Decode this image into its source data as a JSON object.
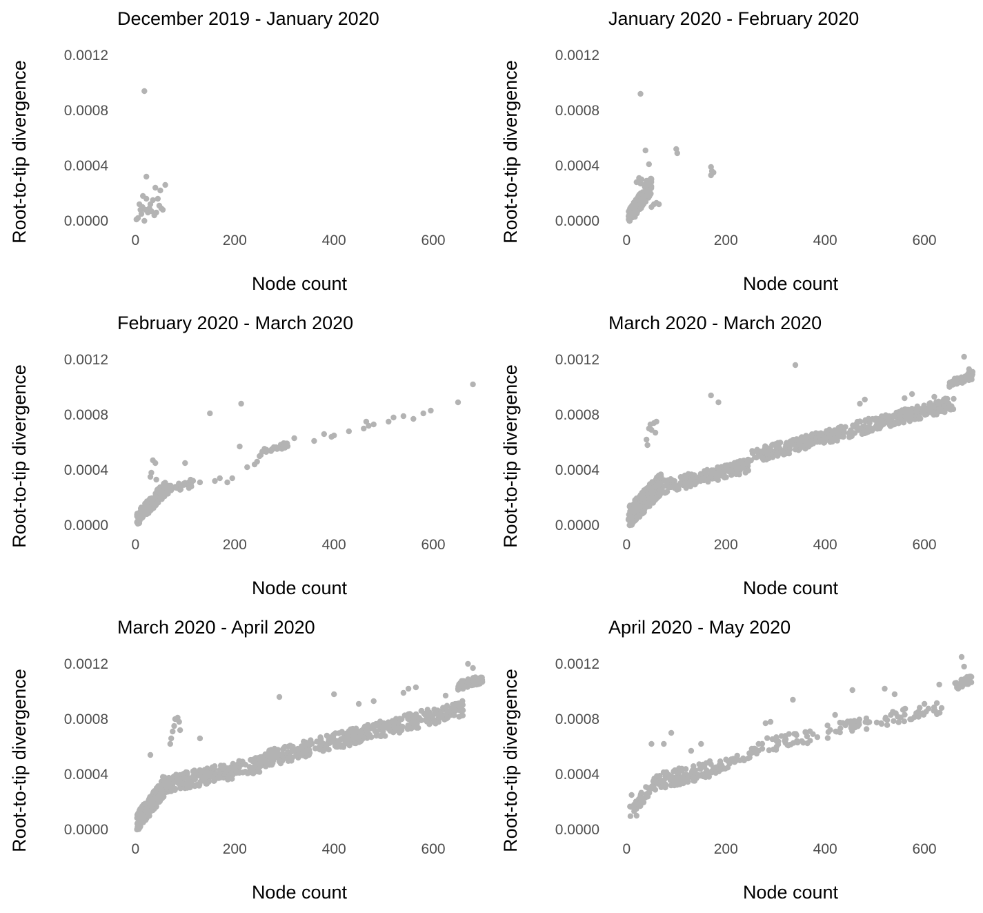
{
  "figure": {
    "point_color": "#b3b3b3",
    "text_color": "#000000",
    "tick_color": "#4d4d4d"
  },
  "chart_data": [
    {
      "type": "scatter",
      "title": "December 2019 - January 2020",
      "xlabel": "Node count",
      "ylabel": "Root-to-tip divergence",
      "xlim": [
        -20,
        700
      ],
      "ylim": [
        -5e-05,
        0.0013
      ],
      "xticks": [
        "0",
        "200",
        "400",
        "600"
      ],
      "yticks": [
        "0.0000",
        "0.0004",
        "0.0008",
        "0.0012"
      ],
      "grid": false,
      "clusters": [],
      "points": [
        [
          2,
          1e-05
        ],
        [
          5,
          2e-05
        ],
        [
          8,
          0.00012
        ],
        [
          10,
          8e-05
        ],
        [
          12,
          5e-05
        ],
        [
          14,
          0.0001
        ],
        [
          15,
          0.00018
        ],
        [
          18,
          0.0
        ],
        [
          18,
          0.00094
        ],
        [
          20,
          8e-05
        ],
        [
          22,
          0.00016
        ],
        [
          22,
          0.00032
        ],
        [
          25,
          6e-05
        ],
        [
          28,
          9e-05
        ],
        [
          30,
          0.00012
        ],
        [
          32,
          7e-05
        ],
        [
          35,
          0.00015
        ],
        [
          38,
          4e-05
        ],
        [
          40,
          0.00024
        ],
        [
          42,
          6e-05
        ],
        [
          45,
          0.00016
        ],
        [
          48,
          0.00011
        ],
        [
          50,
          0.00022
        ],
        [
          52,
          9e-05
        ],
        [
          55,
          8e-05
        ],
        [
          60,
          0.00026
        ]
      ]
    },
    {
      "type": "scatter",
      "title": "January 2020 - February 2020",
      "xlabel": "Node count",
      "ylabel": "Root-to-tip divergence",
      "xlim": [
        -20,
        700
      ],
      "ylim": [
        -5e-05,
        0.0013
      ],
      "xticks": [
        "0",
        "200",
        "400",
        "600"
      ],
      "yticks": [
        "0.0000",
        "0.0004",
        "0.0008",
        "0.0012"
      ],
      "grid": false,
      "clusters": [
        {
          "n": 220,
          "x0": 3,
          "x1": 50,
          "y0": 0.0,
          "y1": 0.00024,
          "sy": 6e-05
        }
      ],
      "points": [
        [
          20,
          0.00028
        ],
        [
          25,
          0.00031
        ],
        [
          28,
          0.00027
        ],
        [
          30,
          0.0003
        ],
        [
          35,
          0.00026
        ],
        [
          40,
          0.00029
        ],
        [
          45,
          0.00028
        ],
        [
          50,
          0.0001
        ],
        [
          55,
          0.00012
        ],
        [
          60,
          0.00013
        ],
        [
          65,
          0.00012
        ],
        [
          28,
          0.00092
        ],
        [
          38,
          0.00051
        ],
        [
          45,
          0.00041
        ],
        [
          100,
          0.00052
        ],
        [
          102,
          0.00049
        ],
        [
          170,
          0.00039
        ],
        [
          172,
          0.00036
        ],
        [
          170,
          0.00033
        ],
        [
          175,
          0.00035
        ]
      ]
    },
    {
      "type": "scatter",
      "title": "February 2020 - March 2020",
      "xlabel": "Node count",
      "ylabel": "Root-to-tip divergence",
      "xlim": [
        -20,
        700
      ],
      "ylim": [
        -5e-05,
        0.0013
      ],
      "xticks": [
        "0",
        "200",
        "400",
        "600"
      ],
      "yticks": [
        "0.0000",
        "0.0004",
        "0.0008",
        "0.0012"
      ],
      "grid": false,
      "clusters": [
        {
          "n": 160,
          "x0": 3,
          "x1": 60,
          "y0": 3e-05,
          "y1": 0.00025,
          "sy": 5e-05
        },
        {
          "n": 50,
          "x0": 40,
          "x1": 120,
          "y0": 0.00022,
          "y1": 0.0003,
          "sy": 3e-05
        },
        {
          "n": 30,
          "x0": 250,
          "x1": 310,
          "y0": 0.00052,
          "y1": 0.00058,
          "sy": 2e-05
        }
      ],
      "points": [
        [
          30,
          0.00035
        ],
        [
          32,
          0.00038
        ],
        [
          35,
          0.00047
        ],
        [
          40,
          0.00045
        ],
        [
          42,
          0.00033
        ],
        [
          100,
          0.00045
        ],
        [
          130,
          0.00031
        ],
        [
          150,
          0.00081
        ],
        [
          160,
          0.00032
        ],
        [
          170,
          0.00034
        ],
        [
          185,
          0.00031
        ],
        [
          195,
          0.00034
        ],
        [
          210,
          0.00057
        ],
        [
          213,
          0.00088
        ],
        [
          225,
          0.00042
        ],
        [
          240,
          0.00044
        ],
        [
          245,
          0.00046
        ],
        [
          250,
          0.0005
        ],
        [
          300,
          0.00059
        ],
        [
          320,
          0.00063
        ],
        [
          360,
          0.00061
        ],
        [
          380,
          0.00066
        ],
        [
          395,
          0.00064
        ],
        [
          400,
          0.00065
        ],
        [
          430,
          0.00068
        ],
        [
          460,
          0.0007
        ],
        [
          465,
          0.00075
        ],
        [
          470,
          0.00072
        ],
        [
          480,
          0.00073
        ],
        [
          510,
          0.00075
        ],
        [
          520,
          0.00078
        ],
        [
          540,
          0.00079
        ],
        [
          560,
          0.00077
        ],
        [
          580,
          0.00081
        ],
        [
          595,
          0.00083
        ],
        [
          650,
          0.00089
        ],
        [
          680,
          0.00102
        ]
      ]
    },
    {
      "type": "scatter",
      "title": "March 2020 - March 2020",
      "xlabel": "Node count",
      "ylabel": "Root-to-tip divergence",
      "xlim": [
        -20,
        700
      ],
      "ylim": [
        -5e-05,
        0.0013
      ],
      "xticks": [
        "0",
        "200",
        "400",
        "600"
      ],
      "yticks": [
        "0.0000",
        "0.0004",
        "0.0008",
        "0.0012"
      ],
      "grid": false,
      "clusters": [
        {
          "n": 260,
          "x0": 3,
          "x1": 70,
          "y0": 3e-05,
          "y1": 0.00028,
          "sy": 8e-05
        },
        {
          "n": 220,
          "x0": 60,
          "x1": 250,
          "y0": 0.00025,
          "y1": 0.00042,
          "sy": 5e-05
        },
        {
          "n": 400,
          "x0": 250,
          "x1": 660,
          "y0": 0.00048,
          "y1": 0.00087,
          "sy": 5e-05
        },
        {
          "n": 60,
          "x0": 650,
          "x1": 700,
          "y0": 0.00101,
          "y1": 0.00108,
          "sy": 3e-05
        }
      ],
      "points": [
        [
          40,
          0.00062
        ],
        [
          42,
          0.00058
        ],
        [
          45,
          0.0007
        ],
        [
          48,
          0.00073
        ],
        [
          50,
          0.00069
        ],
        [
          55,
          0.00074
        ],
        [
          60,
          0.00075
        ],
        [
          58,
          0.00067
        ],
        [
          170,
          0.00094
        ],
        [
          185,
          0.00089
        ],
        [
          340,
          0.00116
        ],
        [
          470,
          0.00088
        ],
        [
          480,
          0.00091
        ],
        [
          560,
          0.00092
        ],
        [
          575,
          0.00095
        ],
        [
          620,
          0.00093
        ],
        [
          680,
          0.00122
        ],
        [
          690,
          0.00113
        ]
      ]
    },
    {
      "type": "scatter",
      "title": "March 2020 - April 2020",
      "xlabel": "Node count",
      "ylabel": "Root-to-tip divergence",
      "xlim": [
        -20,
        700
      ],
      "ylim": [
        -5e-05,
        0.0013
      ],
      "xticks": [
        "0",
        "200",
        "400",
        "600"
      ],
      "yticks": [
        "0.0000",
        "0.0004",
        "0.0008",
        "0.0012"
      ],
      "grid": false,
      "clusters": [
        {
          "n": 200,
          "x0": 3,
          "x1": 60,
          "y0": 3e-05,
          "y1": 0.0003,
          "sy": 7e-05
        },
        {
          "n": 250,
          "x0": 50,
          "x1": 250,
          "y0": 0.0003,
          "y1": 0.00045,
          "sy": 6e-05
        },
        {
          "n": 420,
          "x0": 250,
          "x1": 660,
          "y0": 0.00048,
          "y1": 0.00086,
          "sy": 6e-05
        },
        {
          "n": 60,
          "x0": 650,
          "x1": 700,
          "y0": 0.00103,
          "y1": 0.00108,
          "sy": 3e-05
        }
      ],
      "points": [
        [
          30,
          0.00054
        ],
        [
          70,
          0.00062
        ],
        [
          72,
          0.00066
        ],
        [
          75,
          0.00071
        ],
        [
          78,
          0.00075
        ],
        [
          80,
          0.0008
        ],
        [
          85,
          0.00081
        ],
        [
          88,
          0.00078
        ],
        [
          90,
          0.00072
        ],
        [
          130,
          0.00066
        ],
        [
          290,
          0.00096
        ],
        [
          400,
          0.00098
        ],
        [
          450,
          0.00091
        ],
        [
          480,
          0.00093
        ],
        [
          540,
          0.00099
        ],
        [
          550,
          0.00102
        ],
        [
          565,
          0.00103
        ],
        [
          625,
          0.00097
        ],
        [
          670,
          0.0012
        ],
        [
          680,
          0.00117
        ]
      ]
    },
    {
      "type": "scatter",
      "title": "April 2020 - May 2020",
      "xlabel": "Node count",
      "ylabel": "Root-to-tip divergence",
      "xlim": [
        -20,
        700
      ],
      "ylim": [
        -5e-05,
        0.0013
      ],
      "xticks": [
        "0",
        "200",
        "400",
        "600"
      ],
      "yticks": [
        "0.0000",
        "0.0004",
        "0.0008",
        "0.0012"
      ],
      "grid": false,
      "clusters": [
        {
          "n": 30,
          "x0": 5,
          "x1": 50,
          "y0": 0.0001,
          "y1": 0.0003,
          "sy": 5e-05
        },
        {
          "n": 120,
          "x0": 50,
          "x1": 170,
          "y0": 0.00032,
          "y1": 0.00042,
          "sy": 6e-05
        },
        {
          "n": 50,
          "x0": 170,
          "x1": 260,
          "y0": 0.00042,
          "y1": 0.00055,
          "sy": 4e-05
        },
        {
          "n": 110,
          "x0": 260,
          "x1": 640,
          "y0": 0.00058,
          "y1": 0.00087,
          "sy": 5e-05
        },
        {
          "n": 40,
          "x0": 660,
          "x1": 695,
          "y0": 0.00103,
          "y1": 0.00108,
          "sy": 3e-05
        }
      ],
      "points": [
        [
          10,
          0.00025
        ],
        [
          15,
          0.00018
        ],
        [
          20,
          0.0001
        ],
        [
          50,
          0.00062
        ],
        [
          75,
          0.00062
        ],
        [
          90,
          0.0007
        ],
        [
          130,
          0.00057
        ],
        [
          150,
          0.00062
        ],
        [
          280,
          0.00077
        ],
        [
          290,
          0.00078
        ],
        [
          335,
          0.00094
        ],
        [
          420,
          0.00083
        ],
        [
          455,
          0.00101
        ],
        [
          520,
          0.00102
        ],
        [
          540,
          0.00098
        ],
        [
          600,
          0.00091
        ],
        [
          630,
          0.00105
        ],
        [
          675,
          0.00125
        ],
        [
          680,
          0.00118
        ]
      ]
    }
  ]
}
